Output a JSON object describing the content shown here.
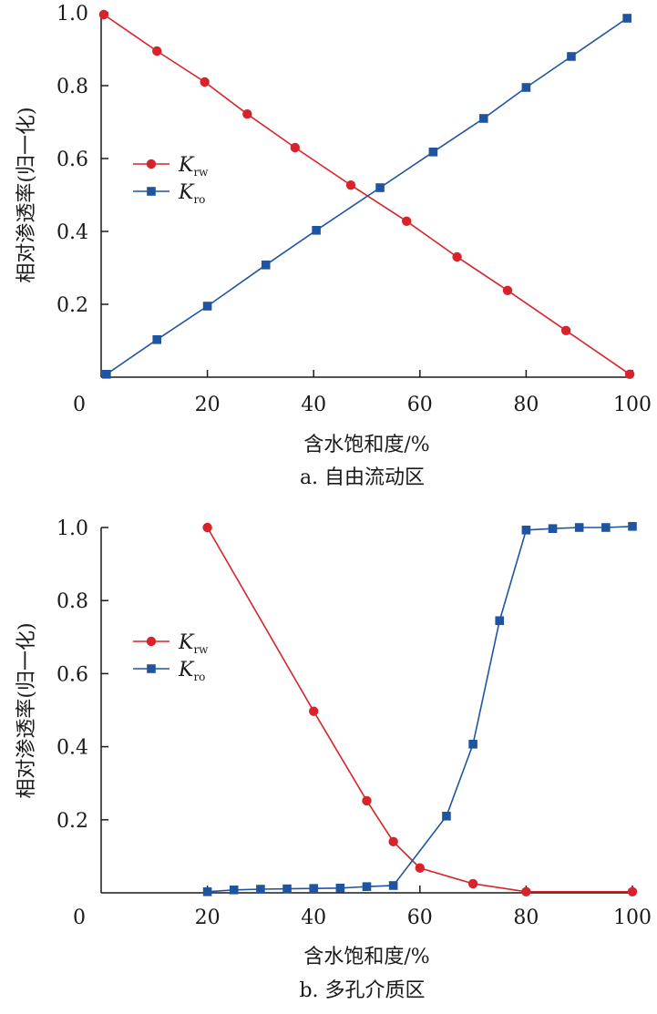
{
  "colors": {
    "krw": "#d8232a",
    "kro": "#1f55a0",
    "axis": "#1a1a1a"
  },
  "chart_data": [
    {
      "type": "line",
      "caption": "a. 自由流动区",
      "xlabel": "含水饱和度/%",
      "ylabel": "相对渗透率(归一化)",
      "xlim": [
        0,
        100
      ],
      "ylim": [
        0,
        1.0
      ],
      "xticks": [
        0,
        20,
        40,
        60,
        80,
        100
      ],
      "xtick_labels": [
        "0",
        "20",
        "40",
        "60",
        "80",
        "100"
      ],
      "yticks": [
        0.2,
        0.4,
        0.6,
        0.8,
        1.0
      ],
      "ytick_labels": [
        "0.2",
        "0.4",
        "0.6",
        "0.8",
        "1.0"
      ],
      "legend_position": "left",
      "series": [
        {
          "name": "K",
          "subscript": "rw",
          "marker": "circle",
          "color": "#d8232a",
          "x": [
            0.5,
            10.5,
            19.5,
            27.5,
            36.5,
            47.0,
            57.5,
            67.0,
            76.5,
            87.5,
            99.5
          ],
          "y": [
            0.995,
            0.895,
            0.81,
            0.722,
            0.63,
            0.527,
            0.428,
            0.33,
            0.238,
            0.128,
            0.008
          ]
        },
        {
          "name": "K",
          "subscript": "ro",
          "marker": "square",
          "color": "#1f55a0",
          "x": [
            1.0,
            10.5,
            20.0,
            31.0,
            40.5,
            52.5,
            62.5,
            72.0,
            80.0,
            88.5,
            99.0
          ],
          "y": [
            0.008,
            0.103,
            0.195,
            0.308,
            0.403,
            0.52,
            0.618,
            0.71,
            0.795,
            0.88,
            0.985
          ]
        }
      ]
    },
    {
      "type": "line",
      "caption": "b. 多孔介质区",
      "xlabel": "含水饱和度/%",
      "ylabel": "相对渗透率(归一化)",
      "xlim": [
        0,
        100
      ],
      "ylim": [
        0,
        1.0
      ],
      "xticks": [
        0,
        20,
        40,
        60,
        80,
        100
      ],
      "xtick_labels": [
        "0",
        "20",
        "40",
        "60",
        "80",
        "100"
      ],
      "yticks": [
        0.2,
        0.4,
        0.6,
        0.8,
        1.0
      ],
      "ytick_labels": [
        "0.2",
        "0.4",
        "0.6",
        "0.8",
        "1.0"
      ],
      "legend_position": "left",
      "series": [
        {
          "name": "K",
          "subscript": "rw",
          "marker": "circle",
          "color": "#d8232a",
          "x": [
            20,
            40,
            50,
            55,
            60,
            70,
            80,
            100
          ],
          "y": [
            1.0,
            0.497,
            0.252,
            0.14,
            0.068,
            0.025,
            0.003,
            0.003
          ]
        },
        {
          "name": "K",
          "subscript": "ro",
          "marker": "square",
          "color": "#1f55a0",
          "x": [
            20,
            25,
            30,
            35,
            40,
            45,
            50,
            55,
            65,
            70,
            75,
            80,
            85,
            90,
            95,
            100
          ],
          "y": [
            0.003,
            0.008,
            0.01,
            0.011,
            0.012,
            0.013,
            0.017,
            0.02,
            0.21,
            0.407,
            0.745,
            0.993,
            0.997,
            1.0,
            1.0,
            1.003
          ]
        }
      ]
    }
  ]
}
